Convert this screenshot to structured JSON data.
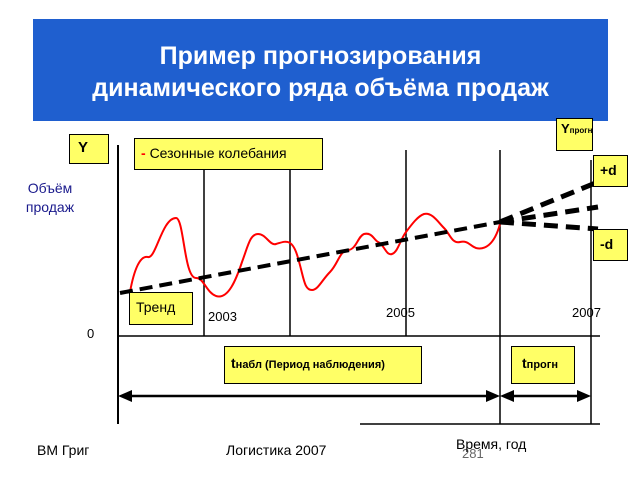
{
  "title": {
    "line1": "Пример прогнозирования",
    "line2": "динамического ряда объёма продаж"
  },
  "colors": {
    "banner_bg": "#1f5fcf",
    "banner_text": "#ffffff",
    "callout_bg": "#ffff66",
    "seasonal_curve": "#ff0000",
    "trend_line": "#000000",
    "y_axis_label": "#1a1a8c"
  },
  "axis": {
    "y_box": "Y",
    "y_label_line1": "Объём",
    "y_label_line2": "продаж",
    "origin": "0",
    "y_forecast": "Y",
    "y_forecast_sub": "прогн",
    "x_label": "Время, год"
  },
  "legend": {
    "seasonal_dash": "-",
    "seasonal": "Сезонные колебания",
    "trend": "Тренд"
  },
  "years": [
    "2003",
    "2005",
    "2007"
  ],
  "bounds": {
    "plus": "+d",
    "minus": "-d"
  },
  "periods": {
    "observation_t": "t",
    "observation_sub": "набл",
    "observation_text": " (Период наблюдения)",
    "forecast_t": "t",
    "forecast_sub": "прогн"
  },
  "footer": {
    "author": "ВМ Григ",
    "course": "Логистика 2007",
    "page": "281"
  },
  "chart_data": {
    "type": "line",
    "xlabel": "Время, год",
    "ylabel": "Объём продаж",
    "tick_labels": [
      "2003",
      "2005",
      "2007"
    ],
    "series": [
      {
        "name": "Сезонные колебания",
        "style": "solid-red"
      },
      {
        "name": "Тренд",
        "style": "dashed-black"
      }
    ],
    "forecast_bounds": [
      "+d",
      "-d"
    ]
  }
}
